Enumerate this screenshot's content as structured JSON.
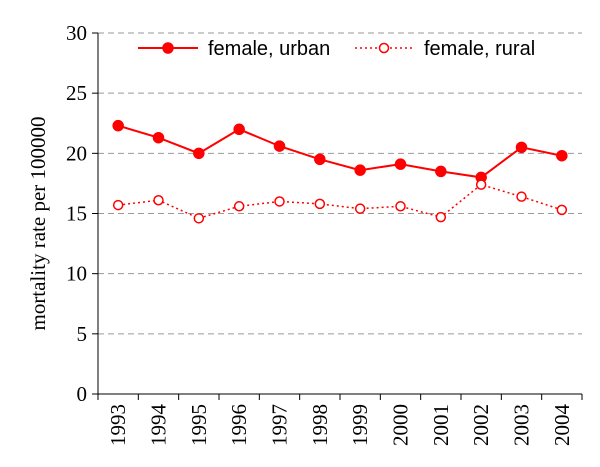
{
  "chart_data": {
    "type": "line",
    "title": "",
    "xlabel": "",
    "ylabel": "mortality rate per 100000",
    "ylim": [
      0,
      30
    ],
    "yticks": [
      0,
      5,
      10,
      15,
      20,
      25,
      30
    ],
    "grid": "horizontal dashed",
    "legend_position": "top",
    "categories": [
      "1993",
      "1994",
      "1995",
      "1996",
      "1997",
      "1998",
      "1999",
      "2000",
      "2001",
      "2002",
      "2003",
      "2004"
    ],
    "series": [
      {
        "name": "female, urban",
        "style": "solid line, filled circle markers",
        "color": "#ff0000",
        "values": [
          22.3,
          21.3,
          20.0,
          22.0,
          20.6,
          19.5,
          18.6,
          19.1,
          18.5,
          18.0,
          20.5,
          19.8
        ]
      },
      {
        "name": "female, rural",
        "style": "dotted line, open circle markers",
        "color": "#ff0000",
        "values": [
          15.7,
          16.1,
          14.6,
          15.6,
          16.0,
          15.8,
          15.4,
          15.6,
          14.7,
          17.4,
          16.4,
          15.3
        ]
      }
    ]
  }
}
